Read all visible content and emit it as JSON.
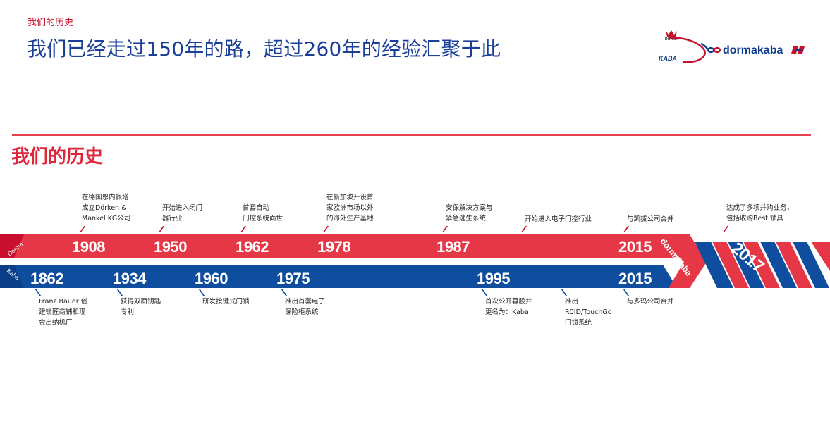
{
  "header": {
    "section_label": "我们的历史",
    "title": "我们已经走过150年的路，超过260年的经验汇聚于此"
  },
  "logo": {
    "dorma_text": "DORMA",
    "kaba_text": "KABA",
    "brand_text": "dormakaba"
  },
  "history": {
    "heading": "我们的历史"
  },
  "timeline": {
    "dorma_label": "Dorma",
    "kaba_label": "Kaba",
    "merged_label": "dormakaba",
    "dorma_events": [
      {
        "year": "1908",
        "text": "在德国恩内佩塔\n成立Dörken &\nMankel KG公司"
      },
      {
        "year": "1950",
        "text": "开始进入闭门\n器行业"
      },
      {
        "year": "1962",
        "text": "首套自动\n门控系统面世"
      },
      {
        "year": "1978",
        "text": "在新加坡开设首\n家欧洲市场以外\n的海外生产基地"
      },
      {
        "year": "1987",
        "text": "安保解决方案与\n紧急逃生系统"
      },
      {
        "year": "",
        "text": "开始进入电子门控行业"
      },
      {
        "year": "2015",
        "text": "与凯拔公司合并"
      }
    ],
    "kaba_events": [
      {
        "year": "1862",
        "text": "Franz Bauer 创\n建锁匠商铺和现\n金出纳机厂"
      },
      {
        "year": "1934",
        "text": "获得双面钥匙\n专利"
      },
      {
        "year": "1960",
        "text": "研发按键式门锁"
      },
      {
        "year": "1975",
        "text": "推出首套电子\n保险柜系统"
      },
      {
        "year": "1995",
        "text": "首次公开募股并\n更名为：Kaba"
      },
      {
        "year": "",
        "text": "推出\nRCID/TouchGo\n门锁系统"
      },
      {
        "year": "2015",
        "text": "与多玛公司合并"
      }
    ],
    "merged_event": {
      "year": "2017",
      "text": "达成了多项并购业务，\n包括收购Best 锁具"
    }
  }
}
